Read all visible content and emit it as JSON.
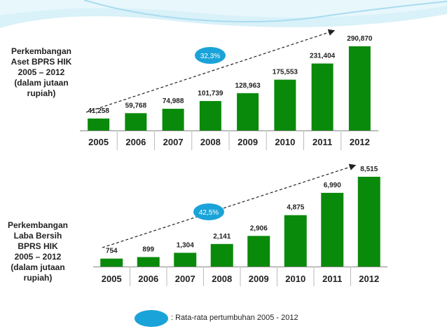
{
  "charts": [
    {
      "label_lines": [
        "Perkembangan",
        "Aset BPRS HIK",
        "2005 – 2012",
        "(dalam jutaan",
        "rupiah)"
      ],
      "growth_badge": "32,3%",
      "chart_data": {
        "type": "bar",
        "title": "Perkembangan Aset BPRS HIK 2005 – 2012 (dalam jutaan rupiah)",
        "categories": [
          "2005",
          "2006",
          "2007",
          "2008",
          "2009",
          "2010",
          "2011",
          "2012"
        ],
        "values": [
          41258,
          59768,
          74988,
          101739,
          128963,
          175553,
          231404,
          290870
        ],
        "value_labels": [
          "41,258",
          "59,768",
          "74,988",
          "101,739",
          "128,963",
          "175,553",
          "231,404",
          "290,870"
        ],
        "ylim": [
          0,
          290870
        ],
        "annotation": "32,3%",
        "color": "#0a8a0a"
      }
    },
    {
      "label_lines": [
        "Perkembangan",
        "Laba Bersih",
        "BPRS HIK",
        "2005 – 2012",
        "(dalam jutaan",
        "rupiah)"
      ],
      "growth_badge": "42,5%",
      "chart_data": {
        "type": "bar",
        "title": "Perkembangan Laba Bersih BPRS HIK 2005 – 2012 (dalam jutaan rupiah)",
        "categories": [
          "2005",
          "2006",
          "2007",
          "2008",
          "2009",
          "2010",
          "2011",
          "2012"
        ],
        "values": [
          754,
          899,
          1304,
          2141,
          2906,
          4875,
          6990,
          8515
        ],
        "value_labels": [
          "754",
          "899",
          "1,304",
          "2,141",
          "2,906",
          "4,875",
          "6,990",
          "8,515"
        ],
        "ylim": [
          0,
          8515
        ],
        "annotation": "42,5%",
        "color": "#0a8a0a"
      }
    }
  ],
  "legend": {
    "text": ": Rata-rata pertumbuhan 2005 - 2012",
    "color": "#1aa3d9"
  },
  "theme": {
    "bar_color": "#0a8a0a",
    "badge_color": "#1aa3d9",
    "wave_color": "#cfeef8"
  }
}
